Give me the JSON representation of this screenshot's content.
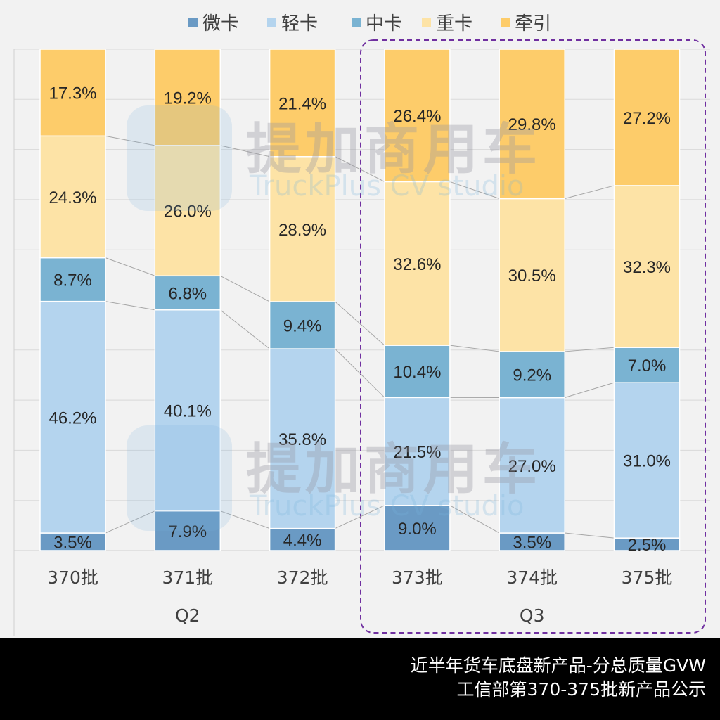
{
  "chart_data": {
    "type": "bar",
    "stacked": true,
    "percent": true,
    "categories": [
      "370批",
      "371批",
      "372批",
      "373批",
      "374批",
      "375批"
    ],
    "groups": [
      {
        "label": "Q2",
        "categories": [
          "370批",
          "371批",
          "372批"
        ]
      },
      {
        "label": "Q3",
        "categories": [
          "373批",
          "374批",
          "375批"
        ],
        "highlighted": true
      }
    ],
    "series": [
      {
        "name": "微卡",
        "color": "#6a9ac4",
        "values": [
          3.5,
          7.9,
          4.4,
          9.0,
          3.5,
          2.5
        ]
      },
      {
        "name": "轻卡",
        "color": "#b4d4ee",
        "values": [
          46.2,
          40.1,
          35.8,
          21.5,
          27.0,
          31.0
        ]
      },
      {
        "name": "中卡",
        "color": "#7ab3d2",
        "values": [
          8.7,
          6.8,
          9.4,
          10.4,
          9.2,
          7.0
        ]
      },
      {
        "name": "重卡",
        "color": "#fde3a6",
        "values": [
          24.3,
          26.0,
          28.9,
          32.6,
          30.5,
          32.3
        ]
      },
      {
        "name": "牵引",
        "color": "#fdcc6a",
        "values": [
          17.3,
          19.2,
          21.4,
          26.4,
          29.8,
          27.2
        ]
      }
    ],
    "ylim": [
      0,
      100
    ],
    "grid": true,
    "legend": "top",
    "highlight_color": "#7030a0"
  },
  "watermark": {
    "cn": "提加商用车",
    "en": "TruckPlus CV studio"
  },
  "footer": {
    "line1": "近半年货车底盘新产品-分总质量GVW",
    "line2": "工信部第370-375批新产品公示"
  }
}
